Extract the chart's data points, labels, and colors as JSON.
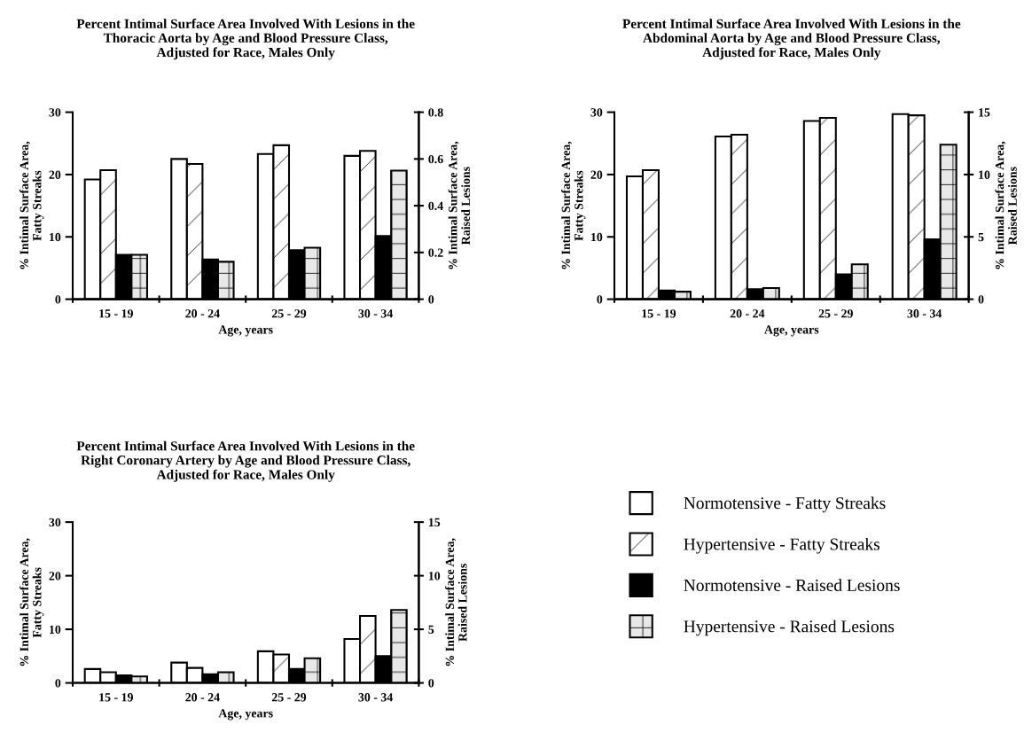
{
  "chart_data": [
    {
      "type": "bar",
      "title": "Percent Intimal Surface Area Involved With Lesions in the\nThoracic Aorta by Age and Blood Pressure Class,\nAdjusted for Race, Males Only",
      "xlabel": "Age, years",
      "ylabel": "% Intimal Surface Area,\nFatty Streaks",
      "y2label": "% Intimal Surface Area,\nRaised Lesions",
      "categories": [
        "15 - 19",
        "20 - 24",
        "25 - 29",
        "30 - 34"
      ],
      "series": [
        {
          "color": "#ffffff",
          "values": [
            19.2,
            22.5,
            23.3,
            23.0
          ]
        },
        {
          "color": "#ffffff",
          "values": [
            20.7,
            21.7,
            24.7,
            23.8
          ]
        },
        {
          "color": "#000000",
          "axis": "y2",
          "values": [
            0.19,
            0.17,
            0.21,
            0.27
          ]
        },
        {
          "color": "#e8e8e8",
          "axis": "y2",
          "values": [
            0.19,
            0.16,
            0.22,
            0.55
          ]
        }
      ],
      "ylim": [
        0,
        30
      ],
      "yticks": [
        0,
        10,
        20,
        30
      ],
      "y2lim": [
        0,
        0.8
      ],
      "y2ticks": [
        0,
        0.2,
        0.4,
        0.6,
        0.8
      ],
      "grid": false,
      "legend": false
    },
    {
      "type": "bar",
      "title": "Percent Intimal Surface Area Involved With Lesions in the\nAbdominal Aorta by Age and Blood Pressure Class,\nAdjusted for Race, Males Only",
      "xlabel": "Age, years",
      "ylabel": "% Intimal Surface Area,\nFatty Streaks",
      "y2label": "% Intimal Surface Area,\nRaised Lesions",
      "categories": [
        "15 - 19",
        "20 - 24",
        "25 - 29",
        "30 - 34"
      ],
      "series": [
        {
          "color": "#ffffff",
          "values": [
            19.7,
            26.1,
            28.6,
            29.7
          ]
        },
        {
          "color": "#ffffff",
          "values": [
            20.7,
            26.4,
            29.1,
            29.5
          ]
        },
        {
          "color": "#000000",
          "axis": "y2",
          "values": [
            0.7,
            0.8,
            2.0,
            4.8
          ]
        },
        {
          "color": "#e8e8e8",
          "axis": "y2",
          "values": [
            0.6,
            0.9,
            2.8,
            12.4
          ]
        }
      ],
      "ylim": [
        0,
        30
      ],
      "yticks": [
        0,
        10,
        20,
        30
      ],
      "y2lim": [
        0,
        15
      ],
      "y2ticks": [
        0,
        5,
        10,
        15
      ],
      "grid": false,
      "legend": false
    },
    {
      "type": "bar",
      "title": "Percent Intimal Surface Area Involved With Lesions in the\nRight Coronary Artery by Age and Blood Pressure Class,\nAdjusted for Race, Males Only",
      "xlabel": "Age, years",
      "ylabel": "% Intimal Surface Area,\nFatty Streaks",
      "y2label": "% Intimal Surface Area,\nRaised Lesions",
      "categories": [
        "15 - 19",
        "20 - 24",
        "25 - 29",
        "30 - 34"
      ],
      "series": [
        {
          "name": "Normotensive - Fatty Streaks",
          "color": "#ffffff",
          "values": [
            2.6,
            3.8,
            5.9,
            8.2
          ]
        },
        {
          "name": "Hypertensive - Fatty Streaks",
          "color": "#ffffff",
          "values": [
            2.0,
            2.8,
            5.3,
            12.5
          ]
        },
        {
          "name": "Normotensive - Raised Lesions",
          "color": "#000000",
          "axis": "y2",
          "values": [
            0.7,
            0.8,
            1.3,
            2.5
          ]
        },
        {
          "name": "Hypertensive - Raised Lesions",
          "color": "#e8e8e8",
          "axis": "y2",
          "values": [
            0.6,
            1.0,
            2.3,
            6.8
          ]
        }
      ],
      "ylim": [
        0,
        30
      ],
      "yticks": [
        0,
        10,
        20,
        30
      ],
      "y2lim": [
        0,
        15
      ],
      "y2ticks": [
        0,
        5,
        10,
        15
      ],
      "grid": false,
      "legend": "right"
    }
  ]
}
